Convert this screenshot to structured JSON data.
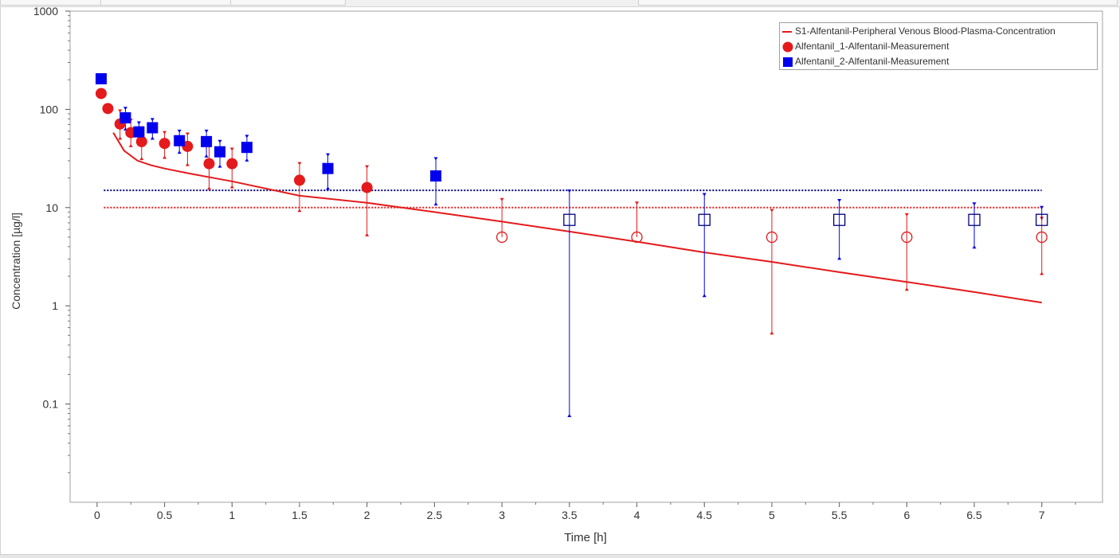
{
  "chart_data": {
    "type": "scatter",
    "x_axis": {
      "label": "Time [h]",
      "range": [
        -0.2,
        7.45
      ],
      "ticks": [
        0,
        0.5,
        1,
        1.5,
        2,
        2.5,
        3,
        3.5,
        4,
        4.5,
        5,
        5.5,
        6,
        6.5,
        7
      ],
      "tick_labels": [
        "0",
        "0.5",
        "1",
        "1.5",
        "2",
        "2.5",
        "3",
        "3.5",
        "4",
        "4.5",
        "5",
        "5.5",
        "6",
        "6.5",
        "7"
      ]
    },
    "y_axis": {
      "label": "Concentration [µg/l]",
      "scale": "log",
      "range": [
        0.01,
        1000
      ],
      "ticks": [
        0.1,
        1,
        10,
        100,
        1000
      ],
      "tick_labels": [
        "0.1",
        "1",
        "10",
        "100",
        "1000"
      ]
    },
    "legend_position": "top-right",
    "grid": false,
    "series": [
      {
        "name": "S1-Alfentanil-Peripheral  Venous  Blood-Plasma-Concentration",
        "kind": "line",
        "color": "#e41a1c",
        "x": [
          0.12,
          0.2,
          0.3,
          0.4,
          0.5,
          0.7,
          1.0,
          1.5,
          2.0,
          2.5,
          3.0,
          3.5,
          4.0,
          4.5,
          5.0,
          5.5,
          6.0,
          6.5,
          7.0
        ],
        "y": [
          58,
          38,
          30,
          27,
          25,
          22,
          18.5,
          13.2,
          11.2,
          9.0,
          7.2,
          5.7,
          4.5,
          3.5,
          2.8,
          2.2,
          1.75,
          1.38,
          1.08
        ]
      },
      {
        "name": "Alfentanil_1-Alfentanil-Measurement",
        "kind": "marker",
        "marker": "circle",
        "color": "#e41a1c",
        "lloq": 10,
        "points": [
          {
            "x": 0.03,
            "y": 145,
            "lower": null,
            "upper": null,
            "below_lloq": false
          },
          {
            "x": 0.08,
            "y": 102,
            "lower": null,
            "upper": null,
            "below_lloq": false
          },
          {
            "x": 0.17,
            "y": 71,
            "lower": 50,
            "upper": 98,
            "below_lloq": false
          },
          {
            "x": 0.25,
            "y": 58,
            "lower": 42,
            "upper": 79,
            "below_lloq": false
          },
          {
            "x": 0.33,
            "y": 47,
            "lower": 31,
            "upper": 66,
            "below_lloq": false
          },
          {
            "x": 0.5,
            "y": 45,
            "lower": 32,
            "upper": 59,
            "below_lloq": false
          },
          {
            "x": 0.67,
            "y": 42,
            "lower": 27,
            "upper": 57,
            "below_lloq": false
          },
          {
            "x": 0.83,
            "y": 28,
            "lower": 15.5,
            "upper": 45,
            "below_lloq": false
          },
          {
            "x": 1.0,
            "y": 28,
            "lower": 16,
            "upper": 40,
            "below_lloq": false
          },
          {
            "x": 1.5,
            "y": 19,
            "lower": 9.2,
            "upper": 28.5,
            "below_lloq": false
          },
          {
            "x": 2.0,
            "y": 16,
            "lower": 5.2,
            "upper": 26.5,
            "below_lloq": false
          },
          {
            "x": 3.0,
            "y": 5,
            "lower": null,
            "upper": 12.3,
            "below_lloq": true
          },
          {
            "x": 4.0,
            "y": 5,
            "lower": null,
            "upper": 11.3,
            "below_lloq": true
          },
          {
            "x": 5.0,
            "y": 5,
            "lower": 0.52,
            "upper": 9.5,
            "below_lloq": true
          },
          {
            "x": 6.0,
            "y": 5,
            "lower": 1.45,
            "upper": 8.6,
            "below_lloq": true
          },
          {
            "x": 7.0,
            "y": 5,
            "lower": 2.1,
            "upper": 7.9,
            "below_lloq": true
          }
        ]
      },
      {
        "name": "Alfentanil_2-Alfentanil-Measurement",
        "kind": "marker",
        "marker": "square",
        "color": "#0000ee",
        "lloq": 15,
        "points": [
          {
            "x": 0.03,
            "y": 205,
            "lower": null,
            "upper": null,
            "below_lloq": false
          },
          {
            "x": 0.21,
            "y": 82,
            "lower": 62,
            "upper": 104,
            "below_lloq": false
          },
          {
            "x": 0.31,
            "y": 59,
            "lower": 44,
            "upper": 74,
            "below_lloq": false
          },
          {
            "x": 0.41,
            "y": 65,
            "lower": 50,
            "upper": 80,
            "below_lloq": false
          },
          {
            "x": 0.61,
            "y": 48,
            "lower": 36,
            "upper": 61,
            "below_lloq": false
          },
          {
            "x": 0.81,
            "y": 47,
            "lower": 33,
            "upper": 61,
            "below_lloq": false
          },
          {
            "x": 0.91,
            "y": 37,
            "lower": 26,
            "upper": 48,
            "below_lloq": false
          },
          {
            "x": 1.11,
            "y": 41,
            "lower": 30,
            "upper": 54,
            "below_lloq": false
          },
          {
            "x": 1.71,
            "y": 25,
            "lower": 15.5,
            "upper": 35,
            "below_lloq": false
          },
          {
            "x": 2.51,
            "y": 21,
            "lower": 10.7,
            "upper": 32,
            "below_lloq": false
          },
          {
            "x": 3.5,
            "y": 7.5,
            "lower": 0.075,
            "upper": 15,
            "below_lloq": true
          },
          {
            "x": 4.5,
            "y": 7.5,
            "lower": 1.25,
            "upper": 13.8,
            "below_lloq": true
          },
          {
            "x": 5.5,
            "y": 7.5,
            "lower": 3.0,
            "upper": 12.0,
            "below_lloq": true
          },
          {
            "x": 6.5,
            "y": 7.5,
            "lower": 3.9,
            "upper": 11.1,
            "below_lloq": true
          },
          {
            "x": 7.0,
            "y": 7.5,
            "lower": null,
            "upper": 10.2,
            "below_lloq": true
          }
        ]
      }
    ]
  }
}
